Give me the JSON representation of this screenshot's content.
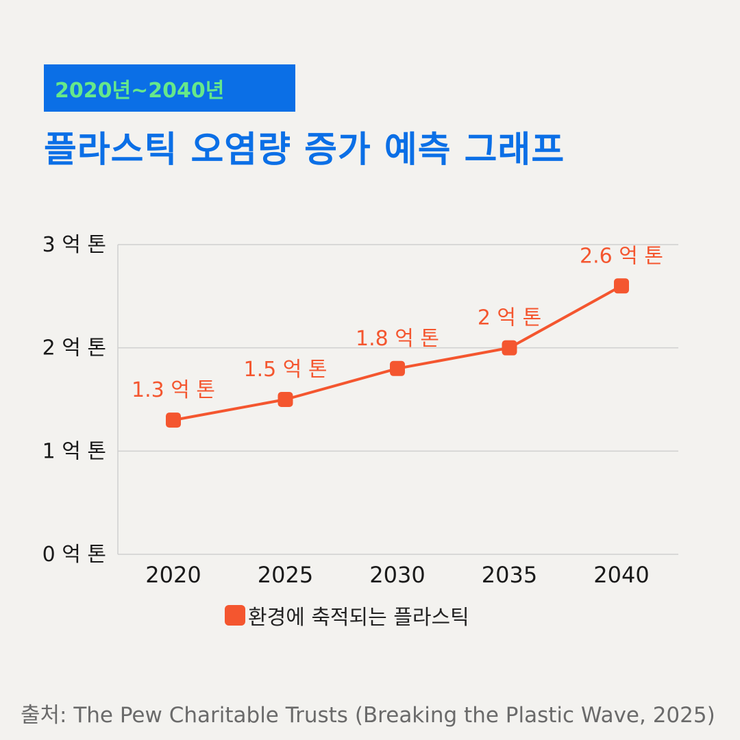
{
  "subtitle": "2020년~2040년",
  "title": "플라스틱 오염량 증가 예측 그래프",
  "source": "출처: The Pew Charitable Trusts (Breaking the Plastic Wave, 2025)",
  "colors": {
    "accent": "#0b6fe6",
    "subtitle_text": "#66e88a",
    "series": "#f4562f"
  },
  "chart_data": {
    "type": "line",
    "x": [
      "2020",
      "2025",
      "2030",
      "2035",
      "2040"
    ],
    "series": [
      {
        "name": "환경에 축적되는 플라스틱",
        "values": [
          1.3,
          1.5,
          1.8,
          2,
          2.6
        ],
        "data_labels": [
          "1.3 억 톤",
          "1.5 억 톤",
          "1.8 억 톤",
          "2 억 톤",
          "2.6 억 톤"
        ]
      }
    ],
    "ylim": [
      0,
      3
    ],
    "yticks": [
      0,
      1,
      2,
      3
    ],
    "ytick_labels": [
      "0 억 톤",
      "1 억 톤",
      "2 억 톤",
      "3 억 톤"
    ],
    "grid": true,
    "legend_position": "bottom"
  }
}
